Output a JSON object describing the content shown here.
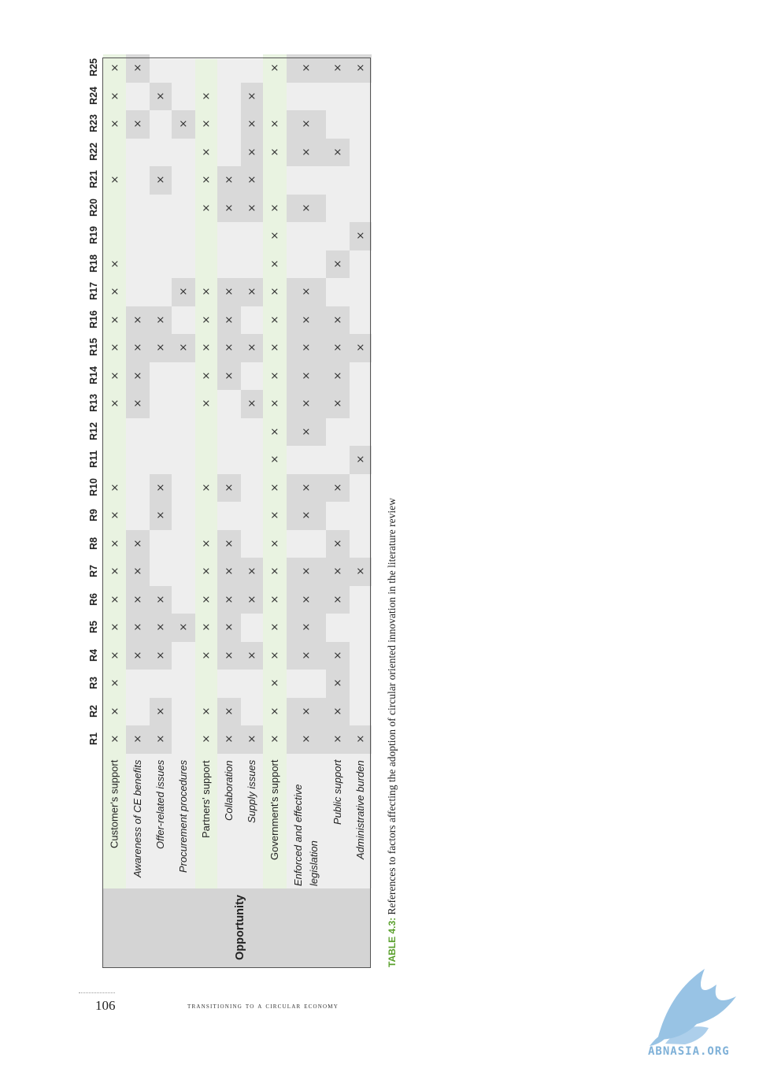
{
  "table": {
    "group_label": "Opportunity",
    "columns": [
      "R1",
      "R2",
      "R3",
      "R4",
      "R5",
      "R6",
      "R7",
      "R8",
      "R9",
      "R10",
      "R11",
      "R12",
      "R13",
      "R14",
      "R15",
      "R16",
      "R17",
      "R18",
      "R19",
      "R20",
      "R21",
      "R22",
      "R23",
      "R24",
      "R25"
    ],
    "rows": [
      {
        "label": "Customer's support",
        "italic": false,
        "marks": [
          1,
          2,
          3,
          4,
          5,
          6,
          7,
          8,
          9,
          10,
          13,
          14,
          15,
          16,
          17,
          18,
          21,
          23,
          24,
          25
        ]
      },
      {
        "label": "Awareness of CE benefits",
        "italic": true,
        "marks": [
          1,
          4,
          5,
          6,
          7,
          8,
          13,
          14,
          15,
          16,
          23,
          25
        ]
      },
      {
        "label": "Offer-related issues",
        "italic": true,
        "marks": [
          1,
          2,
          4,
          5,
          6,
          9,
          10,
          15,
          16,
          21,
          24
        ]
      },
      {
        "label": "Procurement procedures",
        "italic": true,
        "marks": [
          5,
          15,
          17,
          23
        ]
      },
      {
        "label": "Partners' support",
        "italic": false,
        "marks": [
          1,
          2,
          4,
          5,
          6,
          7,
          8,
          10,
          13,
          14,
          15,
          16,
          17,
          20,
          21,
          22,
          23,
          24
        ]
      },
      {
        "label": "Collaboration",
        "italic": true,
        "marks": [
          1,
          2,
          4,
          5,
          6,
          7,
          8,
          10,
          14,
          15,
          16,
          17,
          20,
          21
        ]
      },
      {
        "label": "Supply issues",
        "italic": true,
        "marks": [
          1,
          4,
          6,
          7,
          13,
          15,
          17,
          20,
          21,
          22,
          23,
          24
        ]
      },
      {
        "label": "Government's support",
        "italic": false,
        "marks": [
          1,
          2,
          3,
          4,
          5,
          6,
          7,
          8,
          9,
          10,
          11,
          12,
          13,
          14,
          15,
          16,
          17,
          18,
          19,
          20,
          22,
          23,
          25
        ]
      },
      {
        "label": "Enforced and effective legislation",
        "italic": true,
        "marks": [
          1,
          2,
          4,
          5,
          6,
          7,
          9,
          10,
          12,
          13,
          14,
          15,
          16,
          17,
          20,
          22,
          23,
          25
        ]
      },
      {
        "label": "Public support",
        "italic": true,
        "marks": [
          1,
          2,
          3,
          4,
          6,
          7,
          8,
          10,
          13,
          14,
          15,
          16,
          18,
          22,
          25
        ]
      },
      {
        "label": "Administrative burden",
        "italic": true,
        "marks": [
          1,
          7,
          11,
          15,
          19,
          25
        ]
      }
    ]
  },
  "caption": {
    "tag": "TABLE 4.3:",
    "text": "References to factors affecting the adoption of circular oriented innovation in the literature review"
  },
  "footer": {
    "page_number": "106",
    "running_title": "TRANSITIONING TO A CIRCULAR ECONOMY"
  },
  "watermark": {
    "text": "ABNASIA.ORG"
  },
  "colors": {
    "caption_tag": "#5aa02c",
    "header_band_light": "#e9f3e1",
    "row_light": "#eeeeee",
    "row_dark": "#d9d9d9",
    "group_band": "#d4d4d4",
    "logo": "#7fb1d8"
  }
}
